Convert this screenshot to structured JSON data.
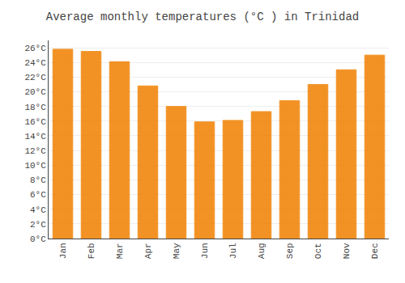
{
  "chart_data": {
    "type": "bar",
    "title": "Average monthly temperatures (°C ) in Trinidad",
    "categories": [
      "Jan",
      "Feb",
      "Mar",
      "Apr",
      "May",
      "Jun",
      "Jul",
      "Aug",
      "Sep",
      "Oct",
      "Nov",
      "Dec"
    ],
    "values": [
      25.8,
      25.5,
      24.1,
      20.8,
      18.0,
      15.9,
      16.1,
      17.3,
      18.8,
      21.0,
      23.0,
      25.0
    ],
    "color": "#F08000",
    "ylim": [
      0,
      27
    ],
    "yticks": [
      {
        "value": 0,
        "label": "0°C"
      },
      {
        "value": 2,
        "label": "2°C"
      },
      {
        "value": 4,
        "label": "4°C"
      },
      {
        "value": 6,
        "label": "6°C"
      },
      {
        "value": 8,
        "label": "8°C"
      },
      {
        "value": 10,
        "label": "10°C"
      },
      {
        "value": 12,
        "label": "12°C"
      },
      {
        "value": 14,
        "label": "14°C"
      },
      {
        "value": 16,
        "label": "16°C"
      },
      {
        "value": 18,
        "label": "18°C"
      },
      {
        "value": 20,
        "label": "20°C"
      },
      {
        "value": 22,
        "label": "22°C"
      },
      {
        "value": 24,
        "label": "24°C"
      },
      {
        "value": 26,
        "label": "26°C"
      }
    ],
    "grid": true
  }
}
